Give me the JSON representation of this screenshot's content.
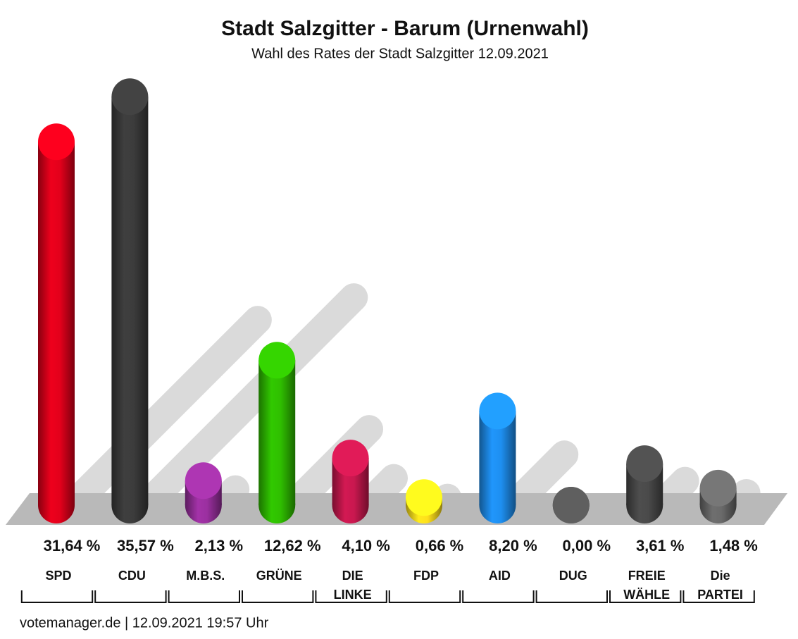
{
  "chart_data": {
    "type": "bar",
    "title": "Stadt Salzgitter - Barum (Urnenwahl)",
    "subtitle": "Wahl des Rates der Stadt Salzgitter 12.09.2021",
    "categories": [
      "SPD",
      "CDU",
      "M.B.S.",
      "GRÜNE",
      "DIE LINKE",
      "FDP",
      "AID",
      "DUG",
      "FREIE WÄHLE",
      "Die PARTEI"
    ],
    "values": [
      31.64,
      35.57,
      2.13,
      12.62,
      4.1,
      0.66,
      8.2,
      0.0,
      3.61,
      1.48
    ],
    "value_labels": [
      "31,64 %",
      "35,57 %",
      "2,13 %",
      "12,62 %",
      "4,10 %",
      "0,66 %",
      "8,20 %",
      "0,00 %",
      "3,61 %",
      "1,48 %"
    ],
    "colors": [
      "#e3001b",
      "#3c3c3c",
      "#9b30a0",
      "#2fbf00",
      "#c9184f",
      "#ffe01b",
      "#1e8ff0",
      "#555555",
      "#4a4a4a",
      "#6a6a6a"
    ],
    "footer": "votemanager.de | 12.09.2021 19:57 Uhr"
  }
}
